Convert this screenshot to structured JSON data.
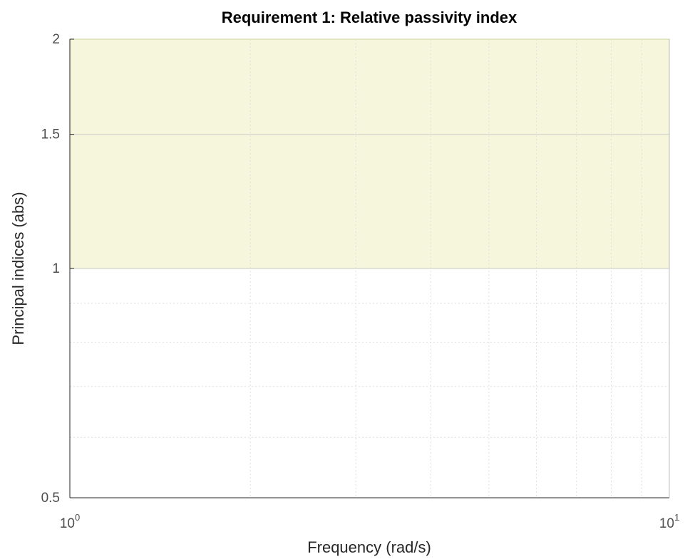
{
  "chart_data": {
    "type": "area",
    "title": "Requirement 1: Relative passivity index",
    "xlabel": "Frequency (rad/s)",
    "ylabel": "Principal indices (abs)",
    "x_scale": "log",
    "y_scale": "log",
    "xlim": [
      1,
      10
    ],
    "ylim": [
      0.5,
      2
    ],
    "x_ticks": [
      {
        "value": 1,
        "base": "10",
        "exponent": "0"
      },
      {
        "value": 10,
        "base": "10",
        "exponent": "1"
      }
    ],
    "y_ticks": [
      {
        "value": 0.5,
        "label": "0.5"
      },
      {
        "value": 1,
        "label": "1"
      },
      {
        "value": 1.5,
        "label": "1.5"
      },
      {
        "value": 2,
        "label": "2"
      }
    ],
    "grid": true,
    "regions": [
      {
        "x": [
          1,
          10
        ],
        "y": [
          1,
          2
        ],
        "color": "#f6f6dc",
        "edge_color": "#d4d9a6"
      }
    ],
    "series": []
  },
  "colors": {
    "axis": "#262626",
    "grid": "#dedede",
    "shade_fill": "#f6f6dc",
    "shade_edge": "#d4d9a6"
  }
}
